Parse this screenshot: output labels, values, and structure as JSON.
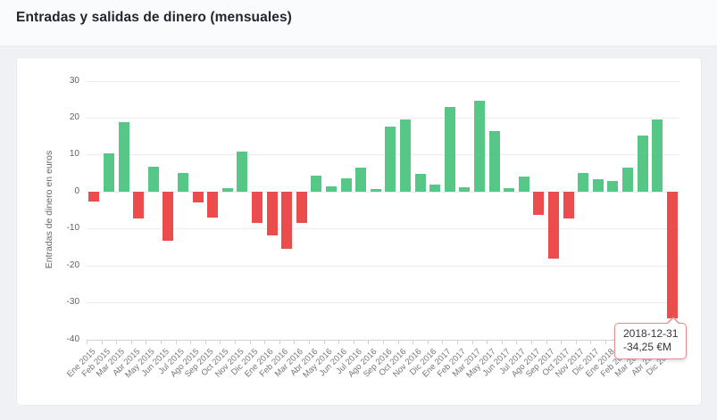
{
  "header": {
    "title": "Entradas y salidas de dinero (mensuales)"
  },
  "chart_data": {
    "type": "bar",
    "title": "Entradas y salidas de dinero (mensuales)",
    "xlabel": "",
    "ylabel": "Entradas de dinero en euros",
    "ylim": [
      -40,
      30
    ],
    "yticks": [
      30,
      20,
      10,
      0,
      -10,
      -20,
      -30,
      -40
    ],
    "grid": true,
    "legend": "none",
    "categories": [
      "Ene 2015",
      "Feb 2015",
      "Mar 2015",
      "Abr 2015",
      "May 2015",
      "Jun 2015",
      "Jul 2015",
      "Ago 2015",
      "Sep 2015",
      "Oct 2015",
      "Nov 2015",
      "Dic 2015",
      "Ene 2016",
      "Feb 2016",
      "Mar 2016",
      "Abr 2016",
      "May 2016",
      "Jun 2016",
      "Jul 2016",
      "Ago 2016",
      "Sep 2016",
      "Oct 2016",
      "Nov 2016",
      "Dic 2016",
      "Ene 2017",
      "Feb 2017",
      "Mar 2017",
      "May 2017",
      "Jun 2017",
      "Jul 2017",
      "Ago 2017",
      "Sep 2017",
      "Oct 2017",
      "Nov 2017",
      "Dic 2017",
      "Ene 2018",
      "Feb 2018",
      "Mar 2018",
      "Abr 2018",
      "Dic 2018"
    ],
    "values": [
      -2.8,
      10.4,
      18.7,
      -7.4,
      6.8,
      -13.3,
      5.0,
      -3.0,
      -7.0,
      0.9,
      10.9,
      -8.4,
      -11.8,
      -15.6,
      -8.4,
      4.3,
      1.4,
      3.6,
      6.5,
      0.6,
      17.6,
      19.5,
      4.7,
      2.0,
      23.0,
      1.2,
      24.6,
      16.3,
      1.0,
      4.0,
      -6.4,
      -18.2,
      -7.3,
      5.1,
      3.3,
      2.8,
      6.5,
      15.2,
      19.5,
      -34.25
    ],
    "colors": {
      "positive": "#56c786",
      "negative": "#ed4c4c"
    }
  },
  "tooltip": {
    "date": "2018-12-31",
    "value": "-34,25 €M",
    "point_index": 39
  }
}
